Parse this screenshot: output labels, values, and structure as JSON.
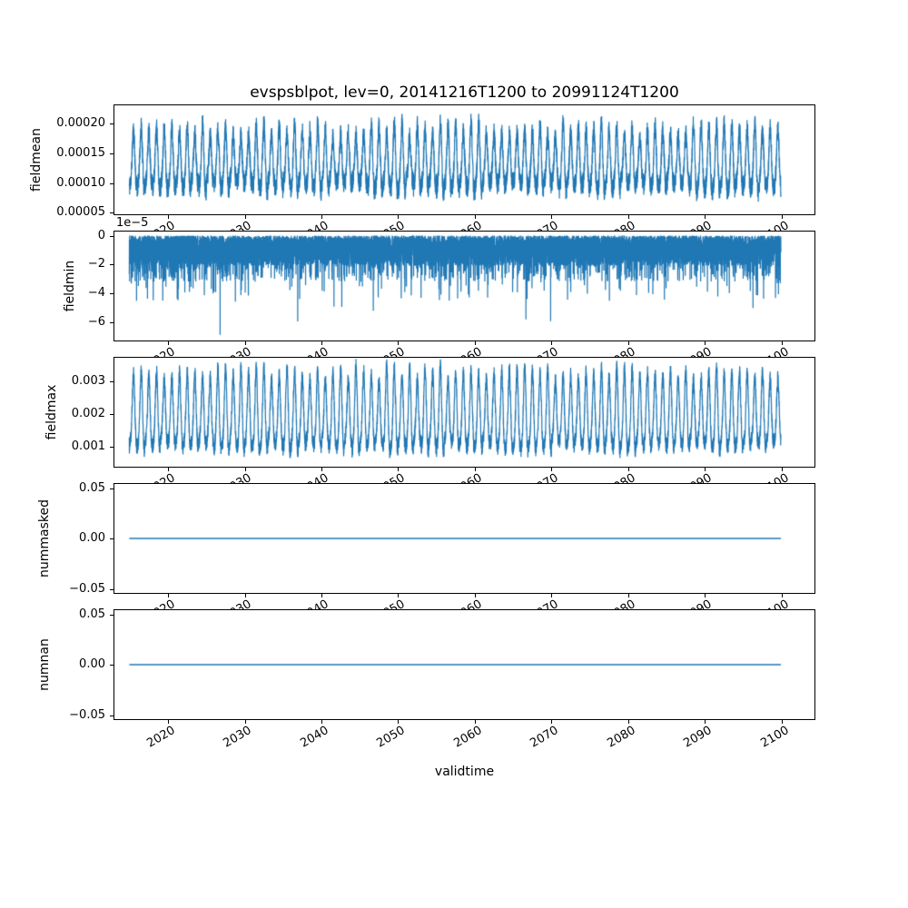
{
  "figure": {
    "background": "#ffffff",
    "line_color": "#1f77b4",
    "frame_color": "#000000",
    "text_color": "#000000"
  },
  "chart_data": {
    "type": "line",
    "title": "evspsblpot, lev=0, 20141216T1200 to 20991124T1200",
    "xlabel": "validtime",
    "legend": "none",
    "grid": false,
    "x_range": [
      2014.96,
      2099.9
    ],
    "xlim": [
      2012.9,
      2104.4
    ],
    "xticks": [
      2020,
      2030,
      2040,
      2050,
      2060,
      2070,
      2080,
      2090,
      2100
    ],
    "xtick_labels": [
      "2020",
      "2030",
      "2040",
      "2050",
      "2060",
      "2070",
      "2080",
      "2090",
      "2100"
    ],
    "subplots": [
      {
        "ylabel": "fieldmean",
        "ylim": [
          4.6e-05,
          0.000232
        ],
        "yticks": [
          5e-05,
          0.0001,
          0.00015,
          0.0002
        ],
        "ytick_labels": [
          "0.00005",
          "0.00010",
          "0.00015",
          "0.00020"
        ],
        "offset_text": "",
        "series": {
          "kind": "seasonal",
          "seed": 11,
          "center": 0.000132,
          "amp": 5.7e-05,
          "amp_var": 0.35,
          "noise": 1.8e-05,
          "summary": "dense annual oscillation between ~0.00006 and ~0.00021 over 2015-2100"
        }
      },
      {
        "ylabel": "fieldmin",
        "ylim": [
          -7.35e-05,
          3.5e-06
        ],
        "yticks": [
          0,
          -2e-05,
          -4e-05,
          -6e-05
        ],
        "ytick_labels": [
          "0",
          "−2",
          "−4",
          "−6"
        ],
        "offset_text": "1e−5",
        "series": {
          "kind": "negative_spikes",
          "seed": 23,
          "dense_max": 2.1e-05,
          "dense_exp": 1.35,
          "tiers": [
            [
              0.0012,
              4.6e-05,
              1.6e-05
            ],
            [
              0.012,
              3e-05,
              1.6e-05
            ],
            [
              0.09,
              1.8e-05,
              1.4e-05
            ]
          ],
          "deep_index": 1254,
          "deep_value": -6.9e-05,
          "summary": "dense band between 0 and −2e−5 with downward spikes to ~−7e−5, deepest near 2026"
        }
      },
      {
        "ylabel": "fieldmax",
        "ylim": [
          0.00034,
          0.00376
        ],
        "yticks": [
          0.001,
          0.002,
          0.003
        ],
        "ytick_labels": [
          "0.001",
          "0.002",
          "0.003"
        ],
        "offset_text": "",
        "series": {
          "kind": "seasonal",
          "seed": 37,
          "center": 0.0019,
          "amp": 0.0013,
          "amp_var": 0.3,
          "noise": 0.00025,
          "summary": "dense annual oscillation between ~0.0005 and ~0.0035 over 2015-2100"
        }
      },
      {
        "ylabel": "nummasked",
        "ylim": [
          -0.055,
          0.055
        ],
        "yticks": [
          -0.05,
          0,
          0.05
        ],
        "ytick_labels": [
          "−0.05",
          "0.00",
          "0.05"
        ],
        "offset_text": "",
        "series": {
          "kind": "constant",
          "value": 0,
          "seed": 1,
          "summary": "constant 0 for entire period"
        }
      },
      {
        "ylabel": "numnan",
        "ylim": [
          -0.055,
          0.055
        ],
        "yticks": [
          -0.05,
          0,
          0.05
        ],
        "ytick_labels": [
          "−0.05",
          "0.00",
          "0.05"
        ],
        "offset_text": "",
        "series": {
          "kind": "constant",
          "value": 0,
          "seed": 2,
          "summary": "constant 0 for entire period"
        }
      }
    ]
  }
}
